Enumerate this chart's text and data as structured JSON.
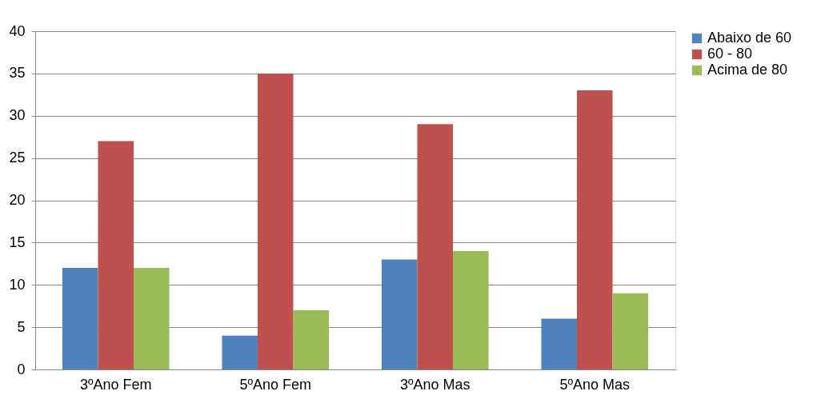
{
  "chart_data": {
    "type": "bar",
    "categories": [
      "3ºAno Fem",
      "5ºAno Fem",
      "3ºAno Mas",
      "5ºAno Mas"
    ],
    "series": [
      {
        "name": "Abaixo de 60",
        "color": "#4f81bd",
        "values": [
          12,
          4,
          13,
          6
        ]
      },
      {
        "name": "60 - 80",
        "color": "#c0504d",
        "values": [
          27,
          35,
          29,
          33
        ]
      },
      {
        "name": "Acima de 80",
        "color": "#9bbb59",
        "values": [
          12,
          7,
          14,
          9
        ]
      }
    ],
    "ylim": [
      0,
      40
    ],
    "yticks": [
      0,
      5,
      10,
      15,
      20,
      25,
      30,
      35,
      40
    ],
    "grid": "y",
    "legend": "right"
  }
}
